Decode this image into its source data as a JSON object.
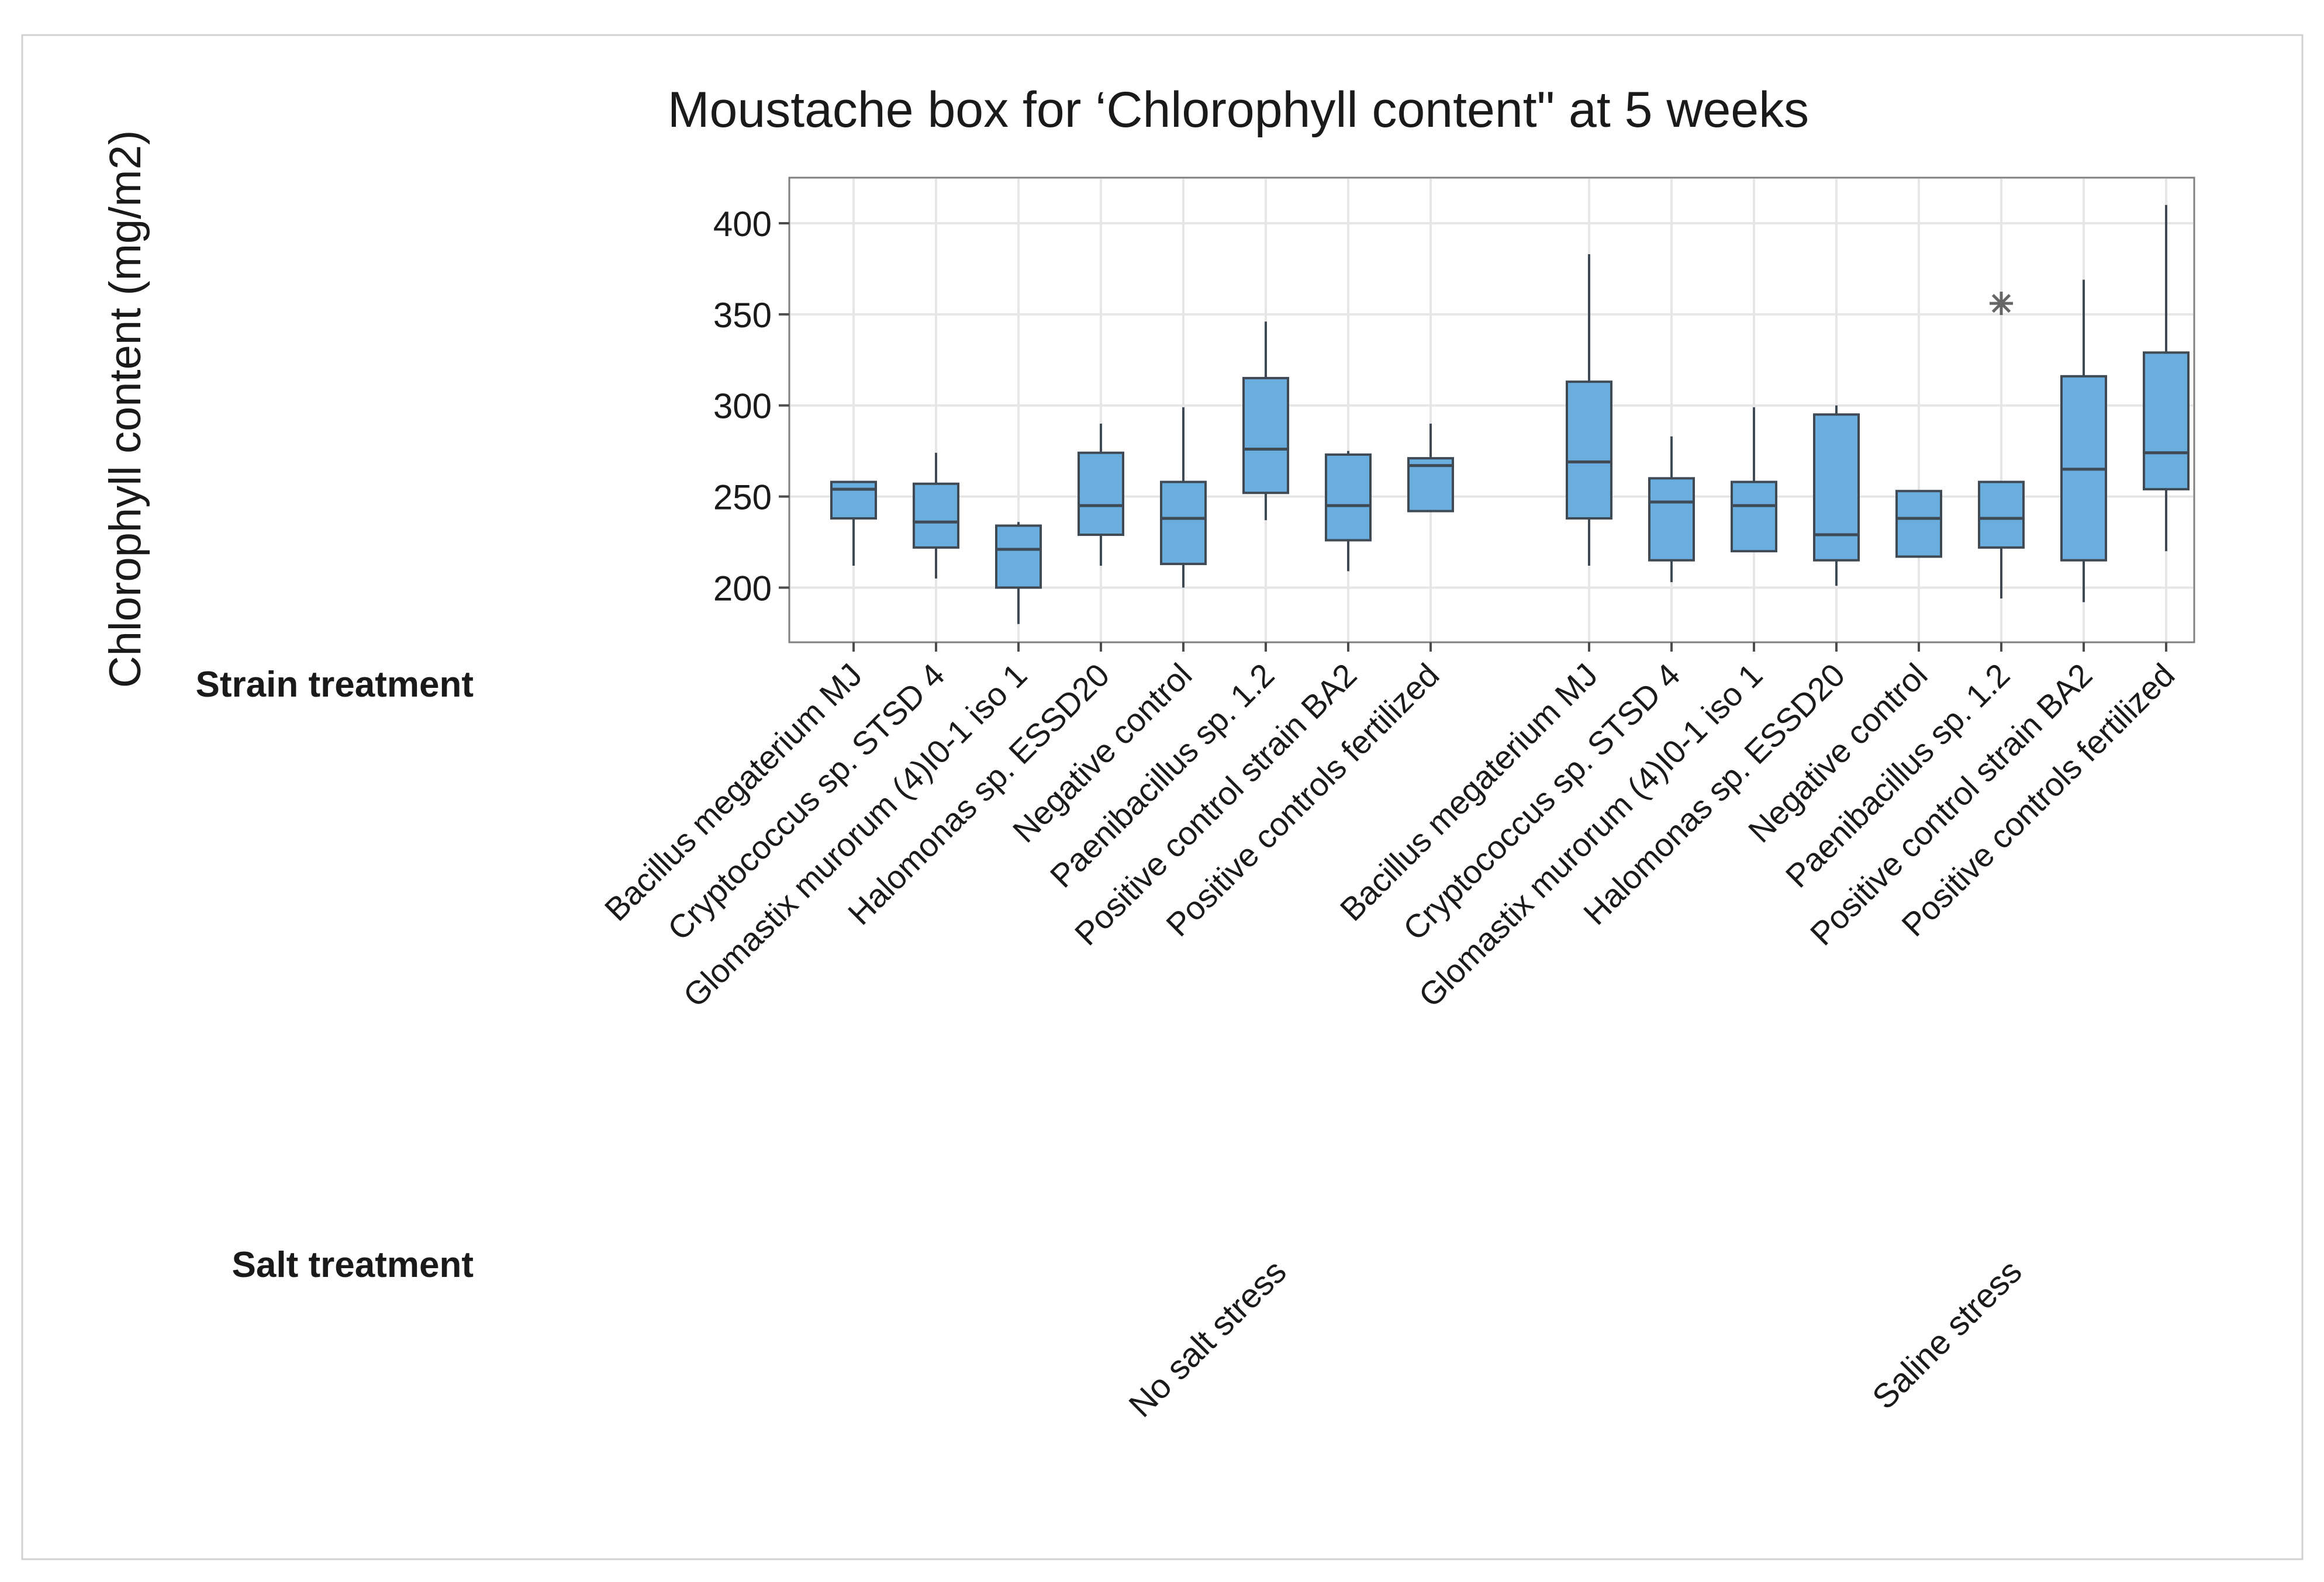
{
  "chart_data": {
    "type": "box",
    "title": "Moustache box for ‘Chlorophyll content\" at 5 weeks",
    "ylabel": "Chlorophyll content (mg/m2)",
    "xlabel": "",
    "ylim": [
      170,
      425
    ],
    "yticks": [
      200,
      250,
      300,
      350,
      400
    ],
    "grid": true,
    "factor_labels": {
      "strain": "Strain treatment",
      "salt": "Salt treatment"
    },
    "groups": [
      {
        "name": "No salt stress",
        "boxes": [
          {
            "label": "Bacillus megaterium MJ",
            "min": 212,
            "q1": 238,
            "median": 254,
            "q3": 258,
            "max": 258,
            "outliers": []
          },
          {
            "label": "Cryptococcus sp. STSD 4",
            "min": 205,
            "q1": 222,
            "median": 236,
            "q3": 257,
            "max": 274,
            "outliers": []
          },
          {
            "label": "Glomastix murorum (4)I0-1 iso 1",
            "min": 180,
            "q1": 200,
            "median": 221,
            "q3": 234,
            "max": 236,
            "outliers": []
          },
          {
            "label": "Halomonas sp. ESSD20",
            "min": 212,
            "q1": 229,
            "median": 245,
            "q3": 274,
            "max": 290,
            "outliers": []
          },
          {
            "label": "Negative control",
            "min": 200,
            "q1": 213,
            "median": 238,
            "q3": 258,
            "max": 299,
            "outliers": []
          },
          {
            "label": "Paenibacillus sp. 1.2",
            "min": 237,
            "q1": 252,
            "median": 276,
            "q3": 315,
            "max": 346,
            "outliers": []
          },
          {
            "label": "Positive control strain BA2",
            "min": 209,
            "q1": 226,
            "median": 245,
            "q3": 273,
            "max": 275,
            "outliers": []
          },
          {
            "label": "Positive controls fertilized",
            "min": 242,
            "q1": 242,
            "median": 267,
            "q3": 271,
            "max": 290,
            "outliers": []
          }
        ]
      },
      {
        "name": "Saline stress",
        "boxes": [
          {
            "label": "Bacillus megaterium MJ",
            "min": 212,
            "q1": 238,
            "median": 269,
            "q3": 313,
            "max": 383,
            "outliers": []
          },
          {
            "label": "Cryptococcus sp. STSD 4",
            "min": 203,
            "q1": 215,
            "median": 247,
            "q3": 260,
            "max": 283,
            "outliers": []
          },
          {
            "label": "Glomastix murorum (4)I0-1 iso 1",
            "min": 220,
            "q1": 220,
            "median": 245,
            "q3": 258,
            "max": 299,
            "outliers": []
          },
          {
            "label": "Halomonas sp. ESSD20",
            "min": 201,
            "q1": 215,
            "median": 229,
            "q3": 295,
            "max": 300,
            "outliers": []
          },
          {
            "label": "Negative control",
            "min": 217,
            "q1": 217,
            "median": 238,
            "q3": 253,
            "max": 253,
            "outliers": []
          },
          {
            "label": "Paenibacillus sp. 1.2",
            "min": 194,
            "q1": 222,
            "median": 238,
            "q3": 258,
            "max": 258,
            "outliers": [
              356
            ]
          },
          {
            "label": "Positive control strain BA2",
            "min": 192,
            "q1": 215,
            "median": 265,
            "q3": 316,
            "max": 369,
            "outliers": []
          },
          {
            "label": "Positive controls fertilized",
            "min": 220,
            "q1": 254,
            "median": 274,
            "q3": 329,
            "max": 410,
            "outliers": []
          }
        ]
      }
    ]
  }
}
